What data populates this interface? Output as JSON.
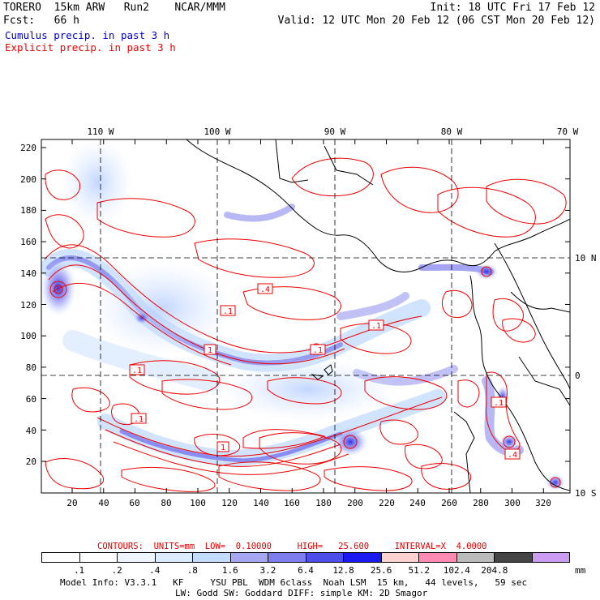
{
  "header": {
    "model_title": "TORERO  15km ARW   Run2    NCAR/MMM",
    "forecast": "Fcst:   66 h",
    "init": "Init: 18 UTC Fri 17 Feb 12",
    "valid": "Valid: 12 UTC Mon 20 Feb 12 (06 CST Mon 20 Feb 12)",
    "cumulus_legend": "Cumulus precip. in past 3 h",
    "explicit_legend": "Explicit precip. in past 3 h"
  },
  "map": {
    "longitude_labels": [
      "110 W",
      "100 W",
      "90 W",
      "80 W",
      "70 W"
    ],
    "latitude_labels": [
      "10 N",
      "0",
      "10 S"
    ],
    "y_ticks": [
      "220",
      "200",
      "180",
      "160",
      "140",
      "120",
      "100",
      "80",
      "60",
      "40",
      "20"
    ],
    "x_ticks": [
      "20",
      "40",
      "60",
      "80",
      "100",
      "120",
      "140",
      "160",
      "180",
      "200",
      "220",
      "240",
      "260",
      "280",
      "300",
      "320"
    ],
    "contour_labels": [
      ".4",
      ".1",
      ".1",
      ".1",
      ".1",
      "1",
      ".1",
      "1",
      ".1",
      ".4"
    ]
  },
  "contour_info": {
    "contours": "CONTOURS:",
    "units": "UNITS=mm",
    "low": "LOW=  0.10000",
    "high": "HIGH=   25.600",
    "interval": "INTERVAL=X  4.0000"
  },
  "colorbar": {
    "colors": [
      "#ffffff",
      "#ffffff",
      "#eef5ff",
      "#dcebff",
      "#c4dcff",
      "#a6a6f2",
      "#7d7dee",
      "#4d4dea",
      "#1a1af0",
      "#ffd2d2",
      "#ff8ab4",
      "#bbbbbb",
      "#454545",
      "#cc9cf2"
    ],
    "labels": [
      ".1",
      ".2",
      ".4",
      ".8",
      "1.6",
      "3.2",
      "6.4",
      "12.8",
      "25.6",
      "51.2",
      "102.4",
      "204.8"
    ],
    "units": "mm"
  },
  "footer": {
    "line1": "Model Info: V3.3.1   KF     YSU PBL  WDM 6class  Noah LSM  15 km,   44 levels,   59 sec",
    "line2": "LW: Godd SW: Goddard DIFF: simple KM: 2D Smagor"
  }
}
